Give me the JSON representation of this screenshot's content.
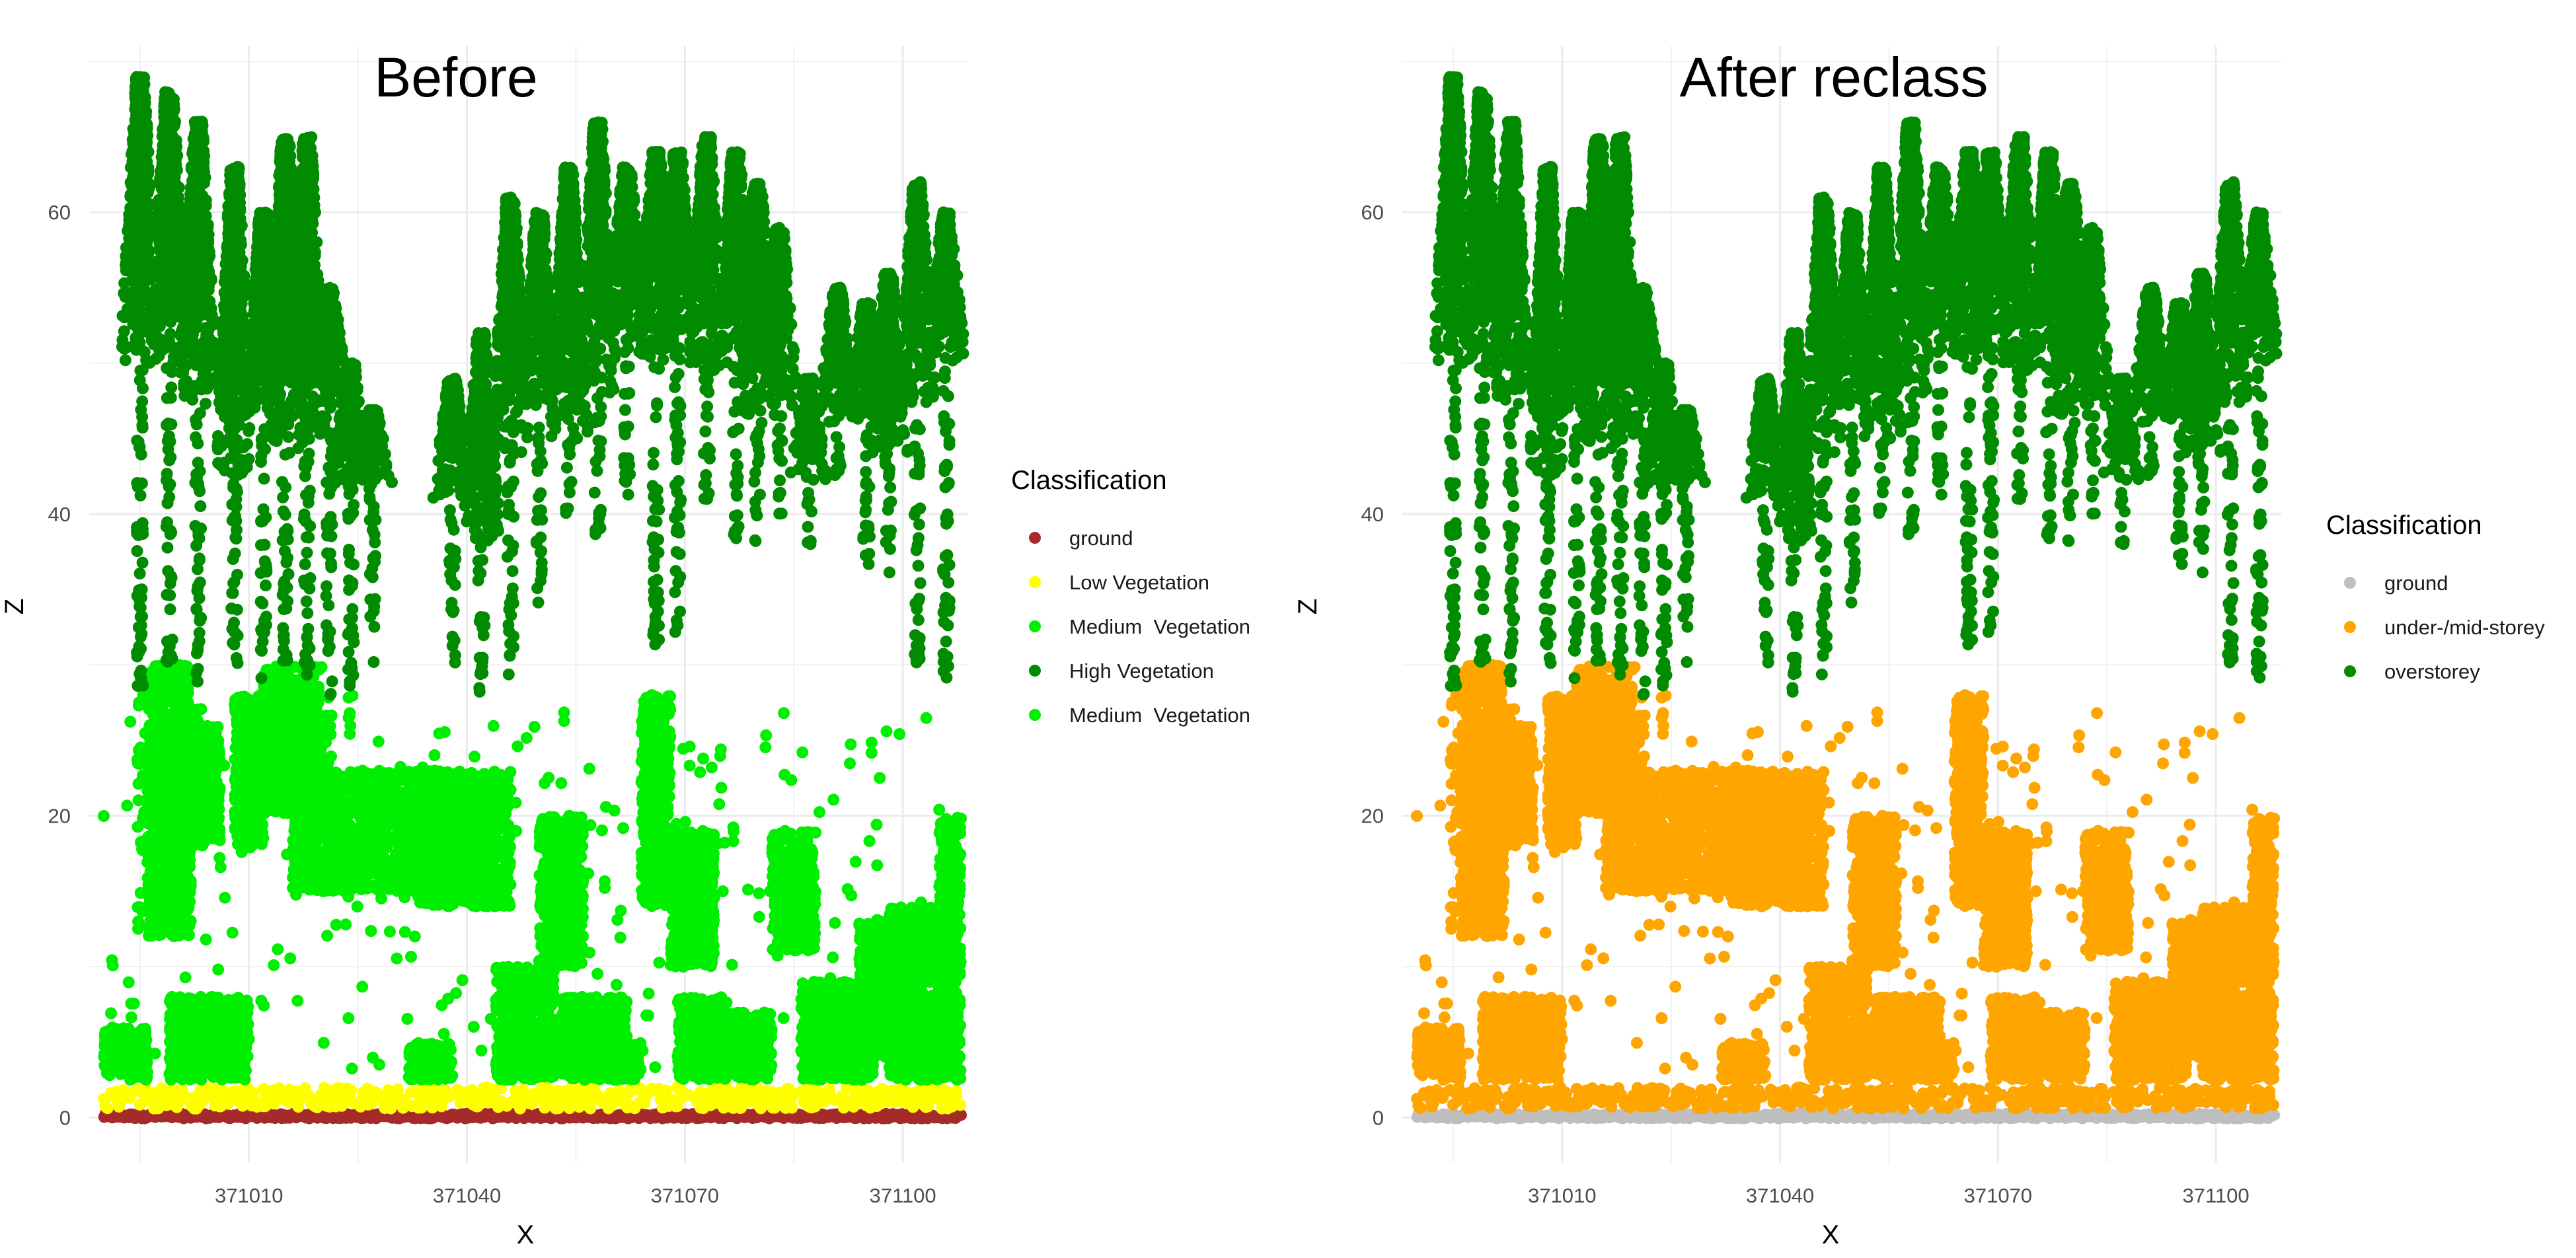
{
  "chart_data": [
    {
      "type": "scatter",
      "title": "Before",
      "xlabel": "X",
      "ylabel": "Z",
      "xlim": [
        370988,
        371109
      ],
      "ylim": [
        -3,
        71
      ],
      "xticks": [
        371010,
        371040,
        371070,
        371100
      ],
      "yticks": [
        0,
        20,
        40,
        60
      ],
      "grid": true,
      "legend": {
        "title": "Classification",
        "placement": "right",
        "entries": [
          {
            "label": "ground",
            "color": "#a52a2a"
          },
          {
            "label": "Low Vegetation",
            "color": "#ffff00"
          },
          {
            "label": "Medium  Vegetation",
            "color": "#00ee00"
          },
          {
            "label": "High Vegetation",
            "color": "#008b00"
          },
          {
            "label": "Medium  Vegetation",
            "color": "#00ee00"
          }
        ]
      },
      "series_colors": {
        "ground": "#a52a2a",
        "low": "#ffff00",
        "medium": "#00ee00",
        "high": "#008b00"
      }
    },
    {
      "type": "scatter",
      "title": "After reclass",
      "xlabel": "X",
      "ylabel": "Z",
      "xlim": [
        370988,
        371109
      ],
      "ylim": [
        -3,
        71
      ],
      "xticks": [
        371010,
        371040,
        371070,
        371100
      ],
      "yticks": [
        0,
        20,
        40,
        60
      ],
      "grid": true,
      "legend": {
        "title": "Classification",
        "placement": "right",
        "entries": [
          {
            "label": "ground",
            "color": "#bebebe"
          },
          {
            "label": "under-/mid-storey",
            "color": "#ffa500"
          },
          {
            "label": "overstorey",
            "color": "#008b00"
          }
        ]
      },
      "series_colors": {
        "ground": "#bebebe",
        "low": "#ffa500",
        "medium": "#ffa500",
        "high": "#008b00"
      }
    }
  ],
  "point_cloud": {
    "ground_z": 0.1,
    "low_z_range": [
      0.6,
      2.0
    ],
    "tree_columns": [
      {
        "x": 370995,
        "top": 69,
        "crown_bottom": 50,
        "stem_bottom": 12
      },
      {
        "x": 370999,
        "top": 68,
        "crown_bottom": 50,
        "stem_bottom": 30
      },
      {
        "x": 371003,
        "top": 66,
        "crown_bottom": 47,
        "stem_bottom": 22
      },
      {
        "x": 371008,
        "top": 63,
        "crown_bottom": 42,
        "stem_bottom": 28
      },
      {
        "x": 371012,
        "top": 60,
        "crown_bottom": 46,
        "stem_bottom": 27
      },
      {
        "x": 371015,
        "top": 65,
        "crown_bottom": 44,
        "stem_bottom": 30
      },
      {
        "x": 371018,
        "top": 65,
        "crown_bottom": 45,
        "stem_bottom": 26
      },
      {
        "x": 371021,
        "top": 55,
        "crown_bottom": 48,
        "stem_bottom": 22
      },
      {
        "x": 371024,
        "top": 50,
        "crown_bottom": 42,
        "stem_bottom": 24
      },
      {
        "x": 371027,
        "top": 47,
        "crown_bottom": 42,
        "stem_bottom": 30
      },
      {
        "x": 371038,
        "top": 49,
        "crown_bottom": 41,
        "stem_bottom": 30
      },
      {
        "x": 371042,
        "top": 52,
        "crown_bottom": 38,
        "stem_bottom": 28
      },
      {
        "x": 371046,
        "top": 61,
        "crown_bottom": 44,
        "stem_bottom": 29
      },
      {
        "x": 371050,
        "top": 60,
        "crown_bottom": 47,
        "stem_bottom": 34
      },
      {
        "x": 371054,
        "top": 63,
        "crown_bottom": 45,
        "stem_bottom": 40
      },
      {
        "x": 371058,
        "top": 66,
        "crown_bottom": 48,
        "stem_bottom": 38
      },
      {
        "x": 371062,
        "top": 63,
        "crown_bottom": 52,
        "stem_bottom": 41
      },
      {
        "x": 371066,
        "top": 64,
        "crown_bottom": 50,
        "stem_bottom": 31
      },
      {
        "x": 371069,
        "top": 64,
        "crown_bottom": 51,
        "stem_bottom": 31
      },
      {
        "x": 371073,
        "top": 65,
        "crown_bottom": 49,
        "stem_bottom": 40
      },
      {
        "x": 371077,
        "top": 64,
        "crown_bottom": 50,
        "stem_bottom": 38
      },
      {
        "x": 371080,
        "top": 62,
        "crown_bottom": 46,
        "stem_bottom": 38
      },
      {
        "x": 371083,
        "top": 59,
        "crown_bottom": 47,
        "stem_bottom": 40
      },
      {
        "x": 371087,
        "top": 49,
        "crown_bottom": 42,
        "stem_bottom": 38
      },
      {
        "x": 371091,
        "top": 55,
        "crown_bottom": 46,
        "stem_bottom": 42
      },
      {
        "x": 371095,
        "top": 54,
        "crown_bottom": 46,
        "stem_bottom": 36
      },
      {
        "x": 371098,
        "top": 56,
        "crown_bottom": 44,
        "stem_bottom": 36
      },
      {
        "x": 371102,
        "top": 62,
        "crown_bottom": 47,
        "stem_bottom": 30
      },
      {
        "x": 371106,
        "top": 60,
        "crown_bottom": 50,
        "stem_bottom": 29
      }
    ],
    "mid_clusters": [
      {
        "x0": 370990,
        "x1": 370996,
        "z0": 2.5,
        "z1": 6
      },
      {
        "x0": 370996,
        "x1": 371002,
        "z0": 12,
        "z1": 30
      },
      {
        "x0": 370999,
        "x1": 371010,
        "z0": 2.5,
        "z1": 8
      },
      {
        "x0": 371002,
        "x1": 371006,
        "z0": 18,
        "z1": 26
      },
      {
        "x0": 371008,
        "x1": 371012,
        "z0": 18,
        "z1": 28
      },
      {
        "x0": 371012,
        "x1": 371020,
        "z0": 20,
        "z1": 30
      },
      {
        "x0": 371016,
        "x1": 371036,
        "z0": 15,
        "z1": 23
      },
      {
        "x0": 371033,
        "x1": 371046,
        "z0": 14,
        "z1": 23
      },
      {
        "x0": 371032,
        "x1": 371038,
        "z0": 2.5,
        "z1": 5
      },
      {
        "x0": 371044,
        "x1": 371052,
        "z0": 2.5,
        "z1": 10
      },
      {
        "x0": 371050,
        "x1": 371056,
        "z0": 10,
        "z1": 20
      },
      {
        "x0": 371053,
        "x1": 371062,
        "z0": 2.5,
        "z1": 8
      },
      {
        "x0": 371058,
        "x1": 371064,
        "z0": 2.5,
        "z1": 5
      },
      {
        "x0": 371064,
        "x1": 371068,
        "z0": 14,
        "z1": 28
      },
      {
        "x0": 371068,
        "x1": 371074,
        "z0": 10,
        "z1": 19
      },
      {
        "x0": 371069,
        "x1": 371076,
        "z0": 2.5,
        "z1": 8
      },
      {
        "x0": 371076,
        "x1": 371082,
        "z0": 2.5,
        "z1": 7
      },
      {
        "x0": 371082,
        "x1": 371088,
        "z0": 11,
        "z1": 19
      },
      {
        "x0": 371086,
        "x1": 371096,
        "z0": 2.5,
        "z1": 9
      },
      {
        "x0": 371094,
        "x1": 371100,
        "z0": 4,
        "z1": 13
      },
      {
        "x0": 371098,
        "x1": 371105,
        "z0": 2.5,
        "z1": 14
      },
      {
        "x0": 371105,
        "x1": 371108,
        "z0": 2.5,
        "z1": 20
      }
    ]
  }
}
